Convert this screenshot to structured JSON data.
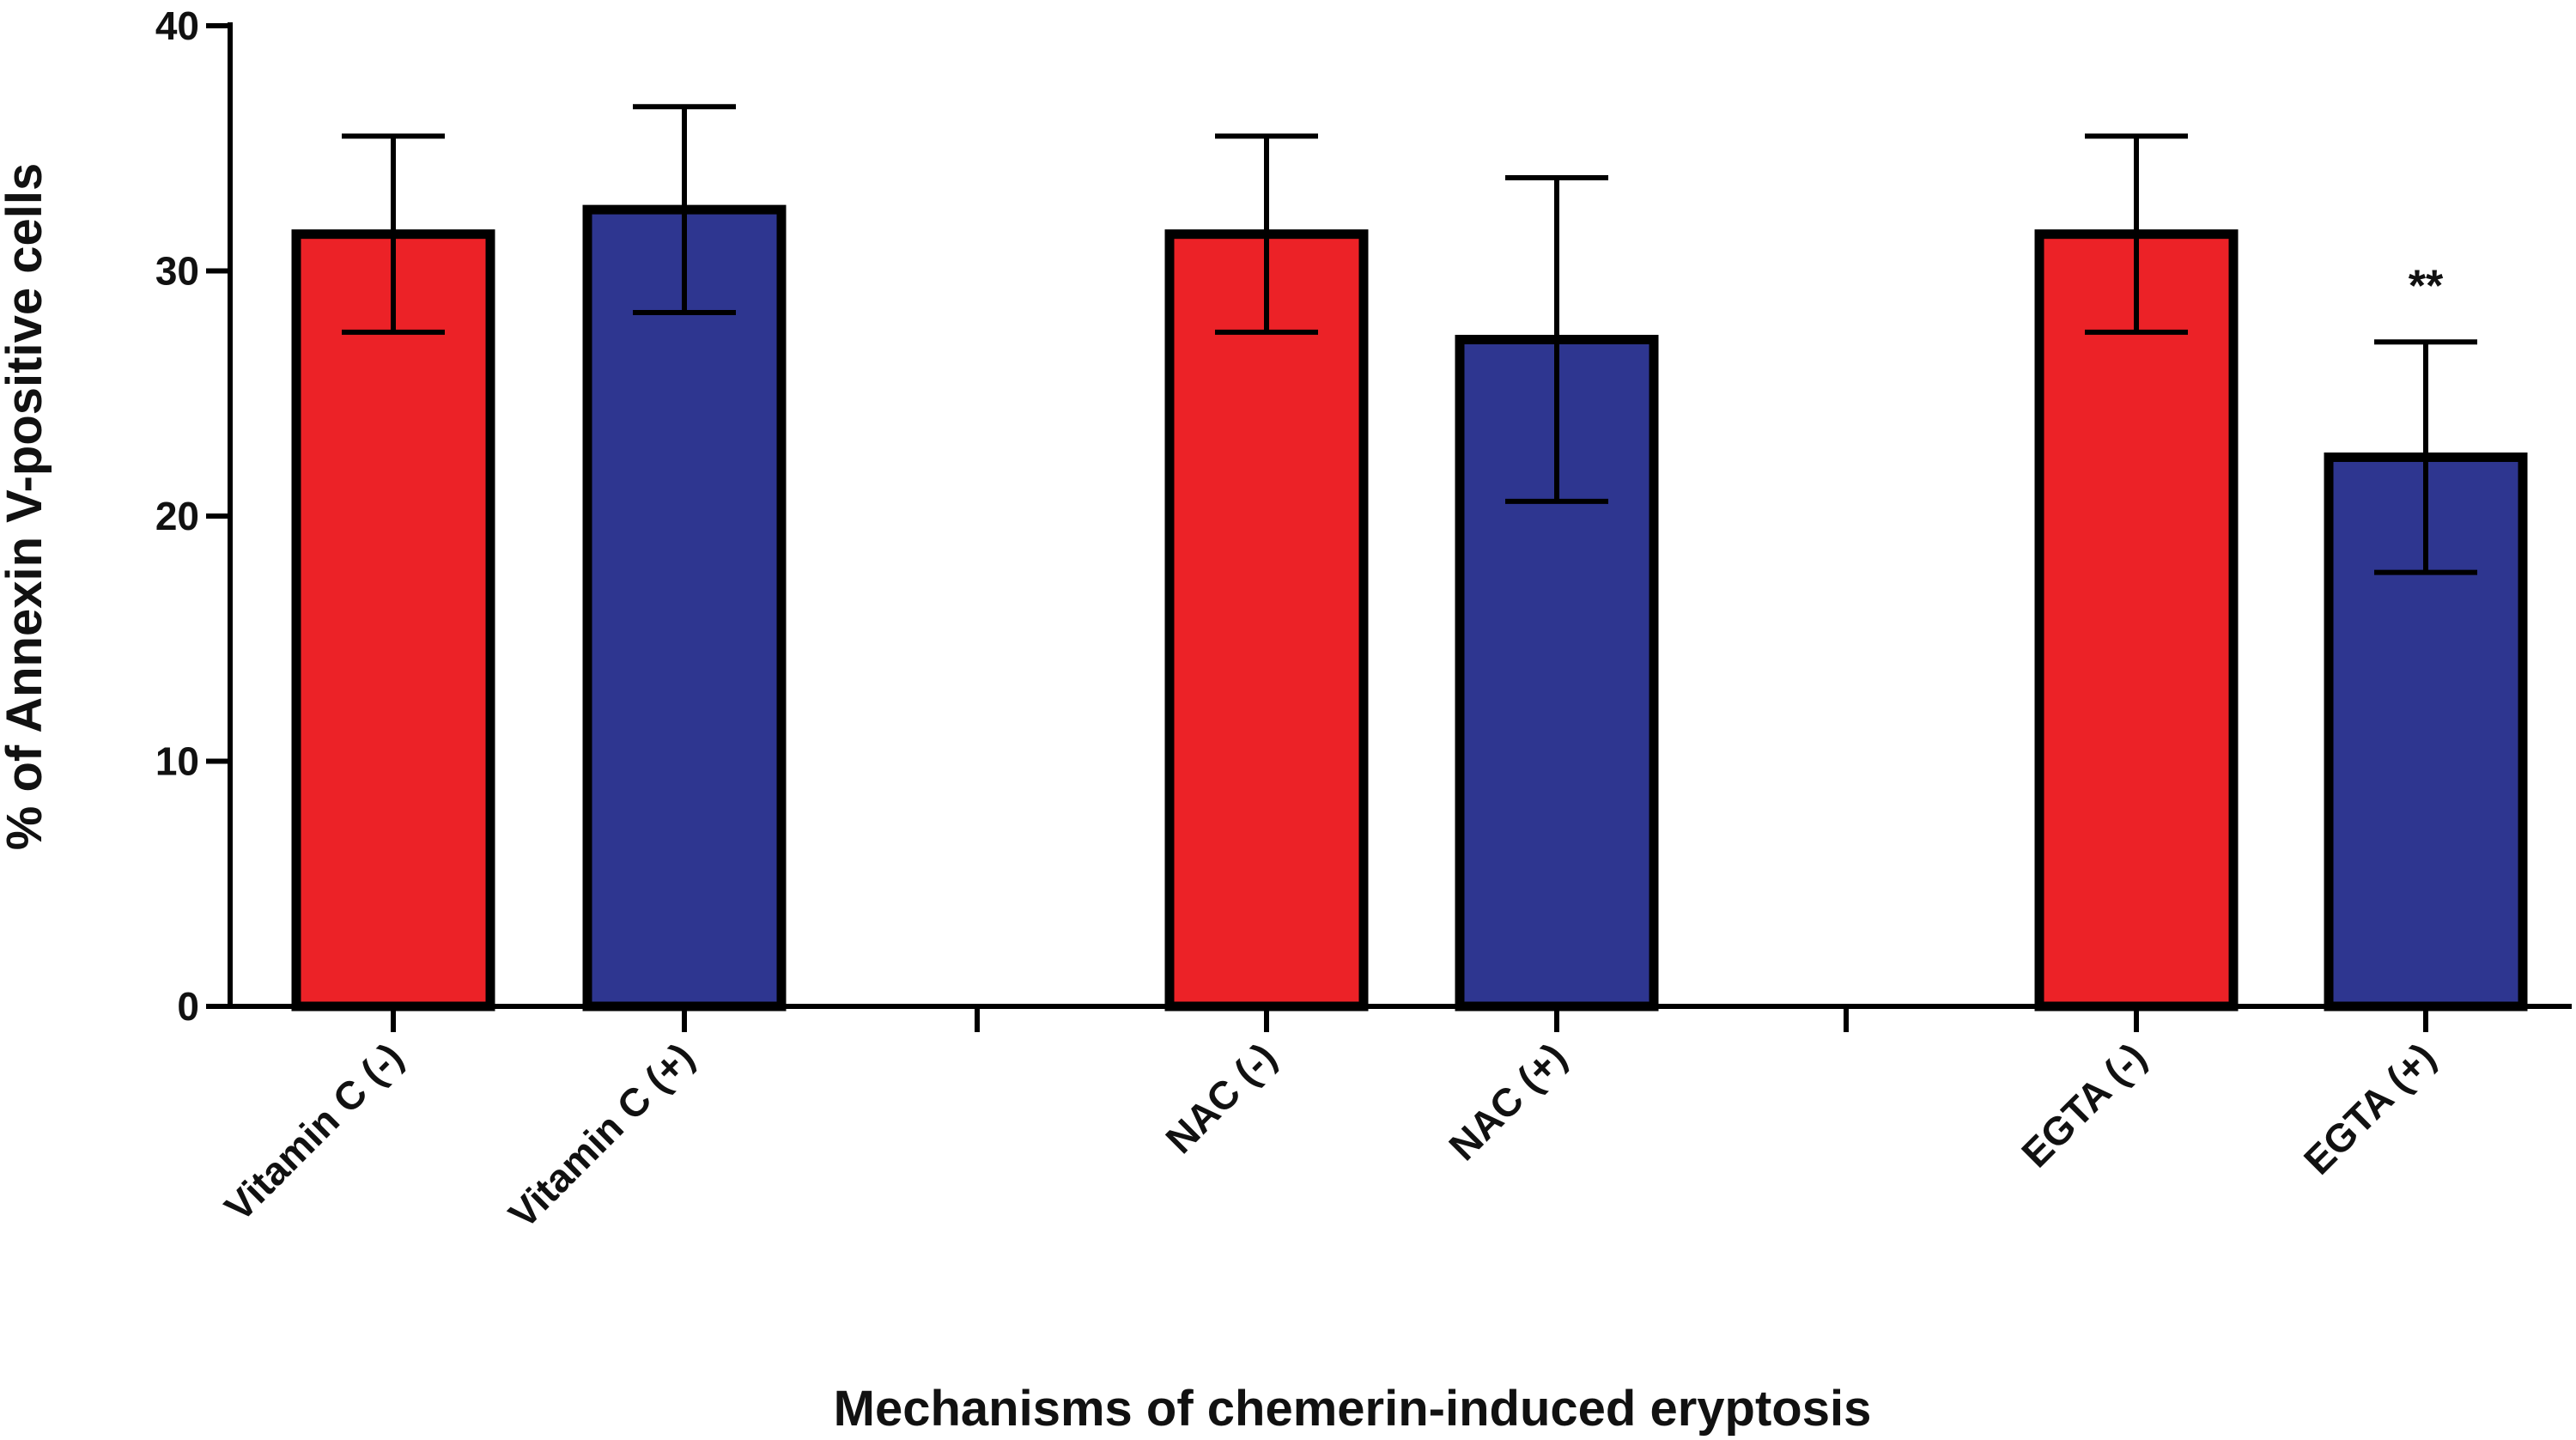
{
  "chart_data": {
    "type": "bar",
    "title": "",
    "xlabel": "Mechanisms of chemerin-induced eryptosis",
    "ylabel": "% of Annexin V-positive cells",
    "ylim": [
      0,
      40
    ],
    "yticks": [
      0,
      10,
      20,
      30,
      40
    ],
    "grid": false,
    "legend": "none",
    "bars": [
      {
        "label": "Vitamin C (-)",
        "value": 31.5,
        "error": 4.0,
        "color": "#ec2227",
        "annotation": ""
      },
      {
        "label": "Vitamin C (+)",
        "value": 32.5,
        "error": 4.2,
        "color": "#2e3690",
        "annotation": ""
      },
      {
        "label": "NAC (-)",
        "value": 31.5,
        "error": 4.0,
        "color": "#ec2227",
        "annotation": ""
      },
      {
        "label": "NAC (+)",
        "value": 27.2,
        "error": 6.6,
        "color": "#2e3690",
        "annotation": ""
      },
      {
        "label": "EGTA (-)",
        "value": 31.5,
        "error": 4.0,
        "color": "#ec2227",
        "annotation": ""
      },
      {
        "label": "EGTA (+)",
        "value": 22.4,
        "error": 4.7,
        "color": "#2e3690",
        "annotation": "**"
      }
    ]
  }
}
